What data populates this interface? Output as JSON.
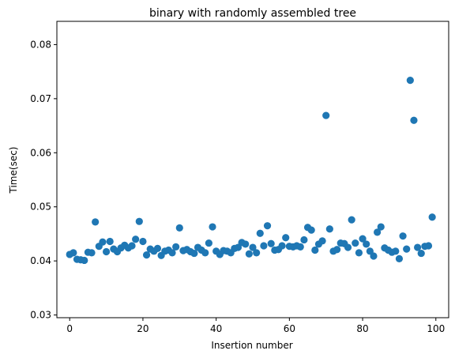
{
  "chart_data": {
    "type": "scatter",
    "title": "binary with randomly assembled tree",
    "xlabel": "Insertion number",
    "ylabel": "Time(sec)",
    "xlim": [
      -3.5,
      103.5
    ],
    "ylim": [
      0.0295,
      0.0843
    ],
    "xticks": [
      0,
      20,
      40,
      60,
      80,
      100
    ],
    "yticks": [
      0.03,
      0.04,
      0.05,
      0.06,
      0.07,
      0.08
    ],
    "xtick_labels": [
      "0",
      "20",
      "40",
      "60",
      "80",
      "100"
    ],
    "ytick_labels": [
      "0.03",
      "0.04",
      "0.05",
      "0.06",
      "0.07",
      "0.08"
    ],
    "grid": false,
    "marker_color": "#1f77b4",
    "x": [
      0,
      1,
      2,
      3,
      4,
      5,
      6,
      7,
      8,
      9,
      10,
      11,
      12,
      13,
      14,
      15,
      16,
      17,
      18,
      19,
      20,
      21,
      22,
      23,
      24,
      25,
      26,
      27,
      28,
      29,
      30,
      31,
      32,
      33,
      34,
      35,
      36,
      37,
      38,
      39,
      40,
      41,
      42,
      43,
      44,
      45,
      46,
      47,
      48,
      49,
      50,
      51,
      52,
      53,
      54,
      55,
      56,
      57,
      58,
      59,
      60,
      61,
      62,
      63,
      64,
      65,
      66,
      67,
      68,
      69,
      70,
      71,
      72,
      73,
      74,
      75,
      76,
      77,
      78,
      79,
      80,
      81,
      82,
      83,
      84,
      85,
      86,
      87,
      88,
      89,
      90,
      91,
      92,
      93,
      94,
      95,
      96,
      97,
      98,
      99
    ],
    "y": [
      0.0412,
      0.0415,
      0.0403,
      0.0402,
      0.0401,
      0.0416,
      0.0415,
      0.0472,
      0.0427,
      0.0435,
      0.0417,
      0.0436,
      0.0422,
      0.0417,
      0.0424,
      0.0429,
      0.0424,
      0.0428,
      0.044,
      0.0473,
      0.0436,
      0.0411,
      0.0422,
      0.0418,
      0.0423,
      0.041,
      0.0418,
      0.042,
      0.0415,
      0.0426,
      0.0461,
      0.0419,
      0.0421,
      0.0417,
      0.0414,
      0.0425,
      0.042,
      0.0415,
      0.0433,
      0.0463,
      0.0418,
      0.0412,
      0.0419,
      0.0418,
      0.0415,
      0.0423,
      0.0425,
      0.0434,
      0.0431,
      0.0413,
      0.0425,
      0.0415,
      0.0451,
      0.0428,
      0.0465,
      0.0432,
      0.042,
      0.0421,
      0.0428,
      0.0443,
      0.0427,
      0.0426,
      0.0428,
      0.0426,
      0.0439,
      0.0462,
      0.0457,
      0.042,
      0.0431,
      0.0437,
      0.0669,
      0.0459,
      0.0418,
      0.0421,
      0.0433,
      0.0432,
      0.0425,
      0.0476,
      0.0433,
      0.0415,
      0.0441,
      0.0431,
      0.0418,
      0.0409,
      0.0453,
      0.0463,
      0.0424,
      0.042,
      0.0416,
      0.0418,
      0.0404,
      0.0446,
      0.0422,
      0.0734,
      0.066,
      0.0425,
      0.0414,
      0.0427,
      0.0428,
      0.0481
    ]
  }
}
